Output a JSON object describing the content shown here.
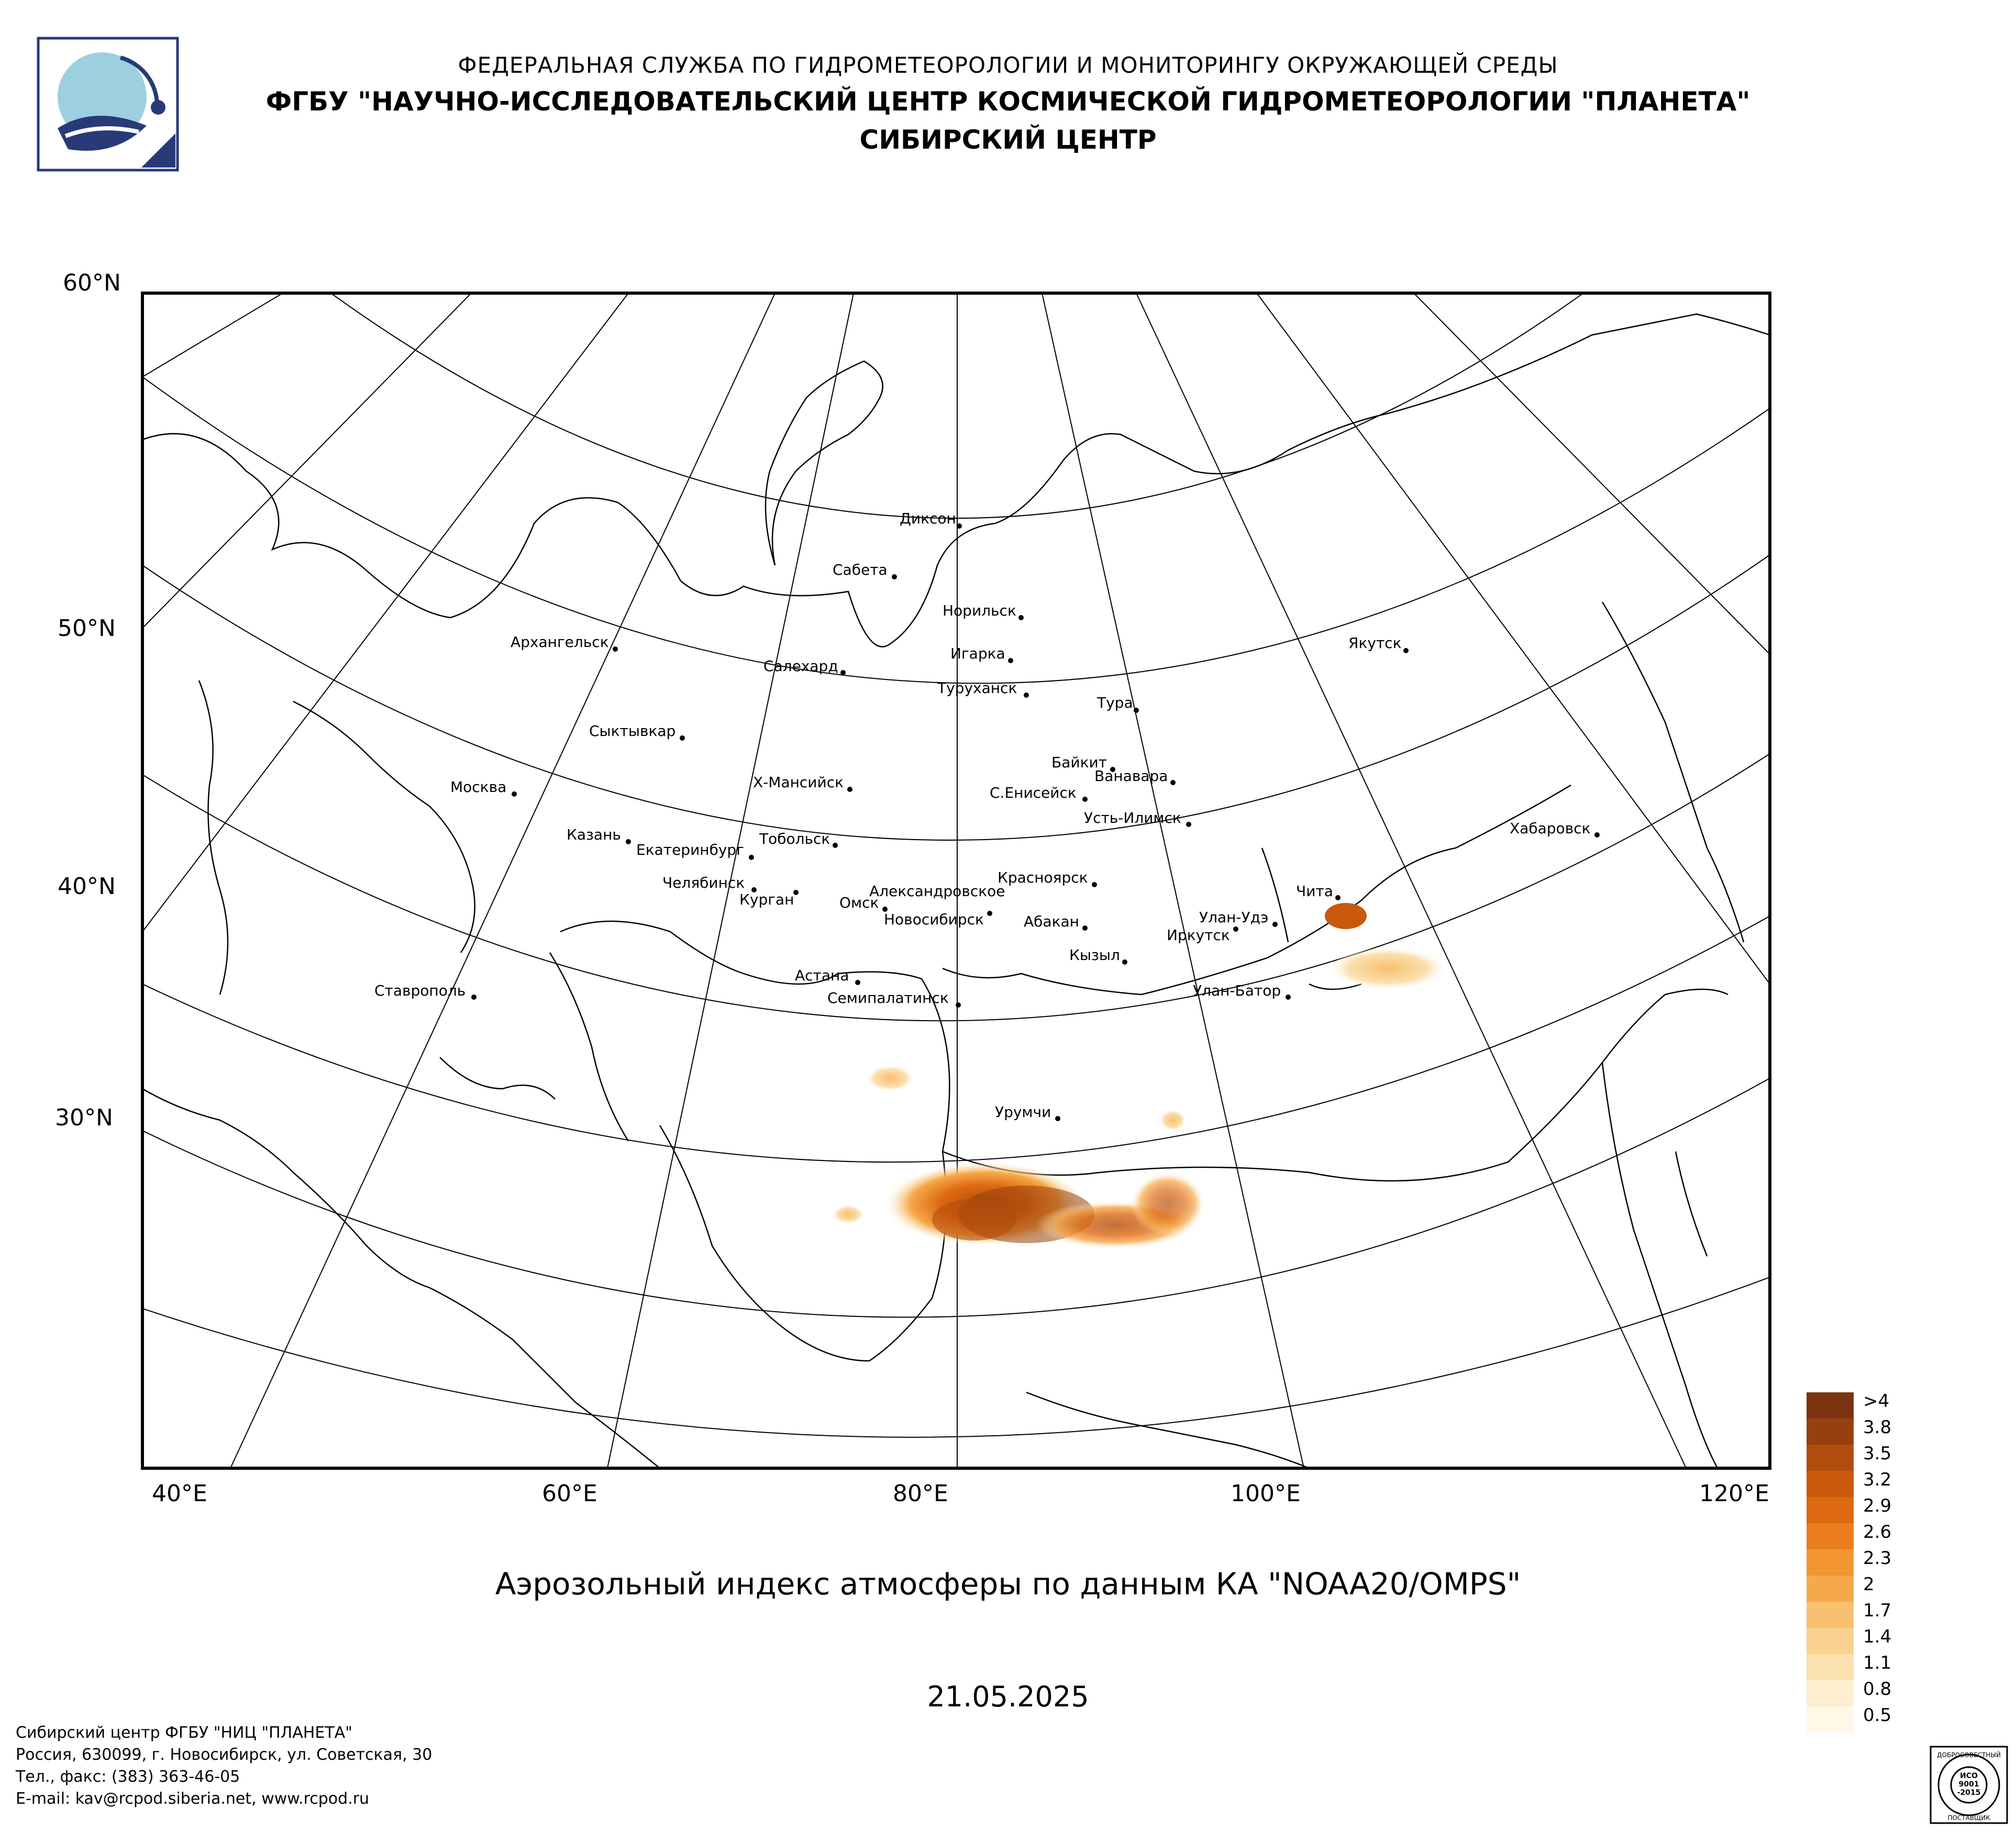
{
  "header": {
    "line1": "ФЕДЕРАЛЬНАЯ СЛУЖБА ПО ГИДРОМЕТЕОРОЛОГИИ И МОНИТОРИНГУ ОКРУЖАЮЩЕЙ СРЕДЫ",
    "line2": "ФГБУ \"НАУЧНО-ИССЛЕДОВАТЕЛЬСКИЙ ЦЕНТР КОСМИЧЕСКОЙ ГИДРОМЕТЕОРОЛОГИИ \"ПЛАНЕТА\"",
    "line3": "СИБИРСКИЙ ЦЕНТР"
  },
  "map": {
    "title": "Аэрозольный индекс атмосферы по данным КА \"NOAA20/OMPS\"",
    "date": "21.05.2025",
    "lat_labels": [
      "60°N",
      "50°N",
      "40°N",
      "30°N"
    ],
    "lon_labels": [
      "40°E",
      "60°E",
      "80°E",
      "100°E",
      "120°E"
    ],
    "cities": [
      "Диксон",
      "Сабета",
      "Норильск",
      "Игарка",
      "Туруханск",
      "Салехард",
      "Архангельск",
      "Якутск",
      "Тура",
      "Сыктывкар",
      "Байкит",
      "Ванавара",
      "Х-Мансийск",
      "С.Енисейск",
      "Москва",
      "Усть-Илимск",
      "Хабаровск",
      "Казань",
      "Екатеринбург",
      "Тобольск",
      "Челябинск",
      "Курган",
      "Красноярск",
      "Александровское",
      "Омск",
      "Новосибирск",
      "Абакан",
      "Чита",
      "Улан-Удэ",
      "Иркутск",
      "Кызыл",
      "Астана",
      "Семипалатинск",
      "Ставрополь",
      "Улан-Батор",
      "Урумчи"
    ]
  },
  "legend": {
    "labels": [
      ">4",
      "3.8",
      "3.5",
      "3.2",
      "2.9",
      "2.6",
      "2.3",
      "2",
      "1.7",
      "1.4",
      "1.1",
      "0.8",
      "0.5"
    ],
    "colors": [
      "#7a3411",
      "#97400f",
      "#b24c0c",
      "#c9580c",
      "#dd6a12",
      "#ea7d20",
      "#f29533",
      "#f6a94a",
      "#f8c06f",
      "#fad18f",
      "#fbe0b0",
      "#fdeecf",
      "#fff8e6"
    ]
  },
  "footer": {
    "line1": "Сибирский центр ФГБУ \"НИЦ \"ПЛАНЕТА\"",
    "line2": "Россия, 630099, г. Новосибирск, ул. Советская, 30",
    "line3": "Тел., факс: (383) 363-46-05",
    "line4": "E-mail: kav@rcpod.siberia.net, www.rcpod.ru"
  },
  "certificate": {
    "top": "ДОБРОСОВЕСТНЫЙ",
    "mid1": "ИСО",
    "mid2": "9001",
    "mid3": "-2015",
    "bottom": "ПОСТАВЩИК"
  },
  "colors": {
    "frame": "#000000",
    "logo_blue": "#9ccfe0",
    "logo_navy": "#283a78"
  }
}
